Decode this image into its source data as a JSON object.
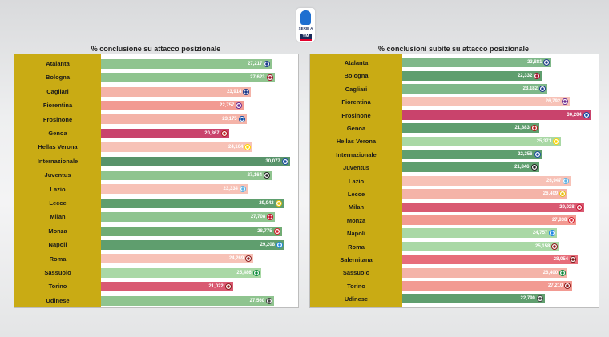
{
  "logo": {
    "text": "SERIE A",
    "sponsor": "TIM"
  },
  "chart_data": [
    {
      "type": "bar",
      "orientation": "horizontal",
      "title": "% conclusione su attacco posizionale",
      "xlim": [
        0,
        31
      ],
      "categories": [
        "Atalanta",
        "Bologna",
        "Cagliari",
        "Fiorentina",
        "Frosinone",
        "Genoa",
        "Hellas Verona",
        "Internazionale",
        "Juventus",
        "Lazio",
        "Lecce",
        "Milan",
        "Monza",
        "Napoli",
        "Roma",
        "Sassuolo",
        "Torino",
        "Udinese"
      ],
      "values": [
        27.217,
        27.623,
        23.914,
        22.757,
        23.175,
        20.367,
        24.164,
        30.077,
        27.164,
        23.334,
        29.042,
        27.708,
        28.775,
        29.208,
        24.269,
        25.486,
        21.022,
        27.56
      ],
      "labels": [
        "27,217",
        "27,623",
        "23,914",
        "22,757",
        "23,175",
        "20,367",
        "24,164",
        "30,077",
        "27,164",
        "23,334",
        "29,042",
        "27,708",
        "28,775",
        "29,208",
        "24,269",
        "25,486",
        "21,022",
        "27,560"
      ],
      "colors": [
        "#8fc48f",
        "#8fc48f",
        "#f4b3a8",
        "#f29a92",
        "#f4b3a8",
        "#c9436c",
        "#f7c2b7",
        "#58936a",
        "#8fc48f",
        "#f7c2b7",
        "#5f9e6e",
        "#8fc48f",
        "#71ac74",
        "#5f9e6e",
        "#f7c2b7",
        "#a9d8a5",
        "#d95a72",
        "#8fc48f"
      ],
      "badge_colors": [
        "#1d3b8c",
        "#a4112d",
        "#1d3b8c",
        "#6b2c91",
        "#0f4fa8",
        "#b51a1a",
        "#ffd500",
        "#1b4fa0",
        "#222222",
        "#5db3e6",
        "#e8c20e",
        "#c8102e",
        "#d71f2e",
        "#1e88e5",
        "#8b1a1a",
        "#0c8a3c",
        "#8b1a1a",
        "#444444"
      ]
    },
    {
      "type": "bar",
      "orientation": "horizontal",
      "title": "% conclusioni subite su attacco posizionale",
      "xlim": [
        0,
        31
      ],
      "categories": [
        "Atalanta",
        "Bologna",
        "Cagliari",
        "Fiorentina",
        "Frosinone",
        "Genoa",
        "Hellas Verona",
        "Internazionale",
        "Juventus",
        "Lazio",
        "Lecce",
        "Milan",
        "Monza",
        "Napoli",
        "Roma",
        "Salernitana",
        "Sassuolo",
        "Torino",
        "Udinese"
      ],
      "values": [
        23.881,
        22.332,
        23.182,
        26.792,
        30.204,
        21.883,
        25.371,
        22.356,
        21.846,
        26.947,
        26.409,
        29.028,
        27.838,
        24.757,
        25.158,
        28.054,
        26.4,
        27.21,
        22.79
      ],
      "labels": [
        "23,881",
        "22,332",
        "23,182",
        "26,792",
        "30,204",
        "21,883",
        "25,371",
        "22,356",
        "21,846",
        "26,947",
        "26,409",
        "29,028",
        "27,838",
        "24,757",
        "25,158",
        "28,054",
        "26,400",
        "27,210",
        "22,790"
      ],
      "colors": [
        "#7fb889",
        "#5f9e6e",
        "#7fb889",
        "#f7c2b7",
        "#c9436c",
        "#5f9e6e",
        "#a9d8a5",
        "#5f9e6e",
        "#5f9e6e",
        "#f7c2b7",
        "#f4b3a8",
        "#d95a72",
        "#f29a92",
        "#a9d8a5",
        "#a9d8a5",
        "#e76d7a",
        "#f4b3a8",
        "#f29a92",
        "#5f9e6e"
      ],
      "badge_colors": [
        "#1d3b8c",
        "#a4112d",
        "#1d3b8c",
        "#6b2c91",
        "#0f4fa8",
        "#b51a1a",
        "#ffd500",
        "#1b4fa0",
        "#222222",
        "#5db3e6",
        "#e8c20e",
        "#c8102e",
        "#d71f2e",
        "#1e88e5",
        "#8b1a1a",
        "#7a1a1a",
        "#0c8a3c",
        "#8b1a1a",
        "#444444"
      ]
    }
  ]
}
